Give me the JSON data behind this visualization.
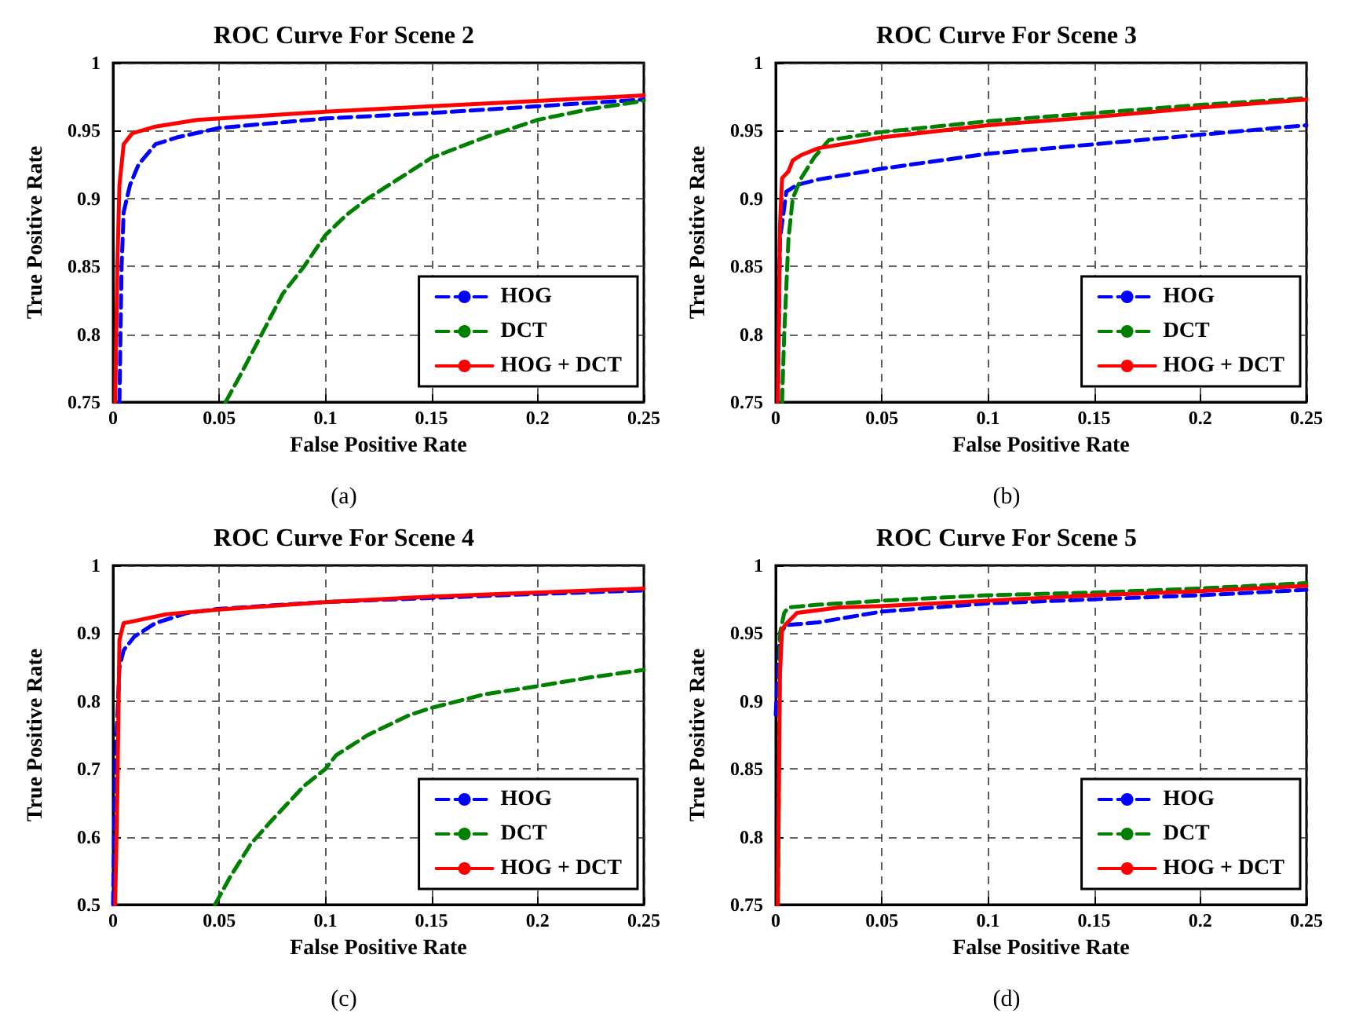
{
  "chart_data": [
    {
      "type": "line",
      "title": "ROC Curve For Scene 2",
      "xlabel": "False Positive Rate",
      "ylabel": "True Positive Rate",
      "annotations": [
        "(a)"
      ],
      "xlim": [
        0,
        0.25
      ],
      "ylim": [
        0.75,
        1
      ],
      "xticks": [
        0,
        0.05,
        0.1,
        0.15,
        0.2,
        0.25
      ],
      "yticks": [
        0.75,
        0.8,
        0.85,
        0.9,
        0.95,
        1
      ],
      "grid": true,
      "legend": "bottom right",
      "series": [
        {
          "name": "HOG",
          "color": "#0000ff",
          "line_style": "dashed",
          "x": [
            0.003,
            0.004,
            0.005,
            0.008,
            0.012,
            0.02,
            0.03,
            0.05,
            0.1,
            0.15,
            0.2,
            0.25
          ],
          "values": [
            0.75,
            0.85,
            0.89,
            0.91,
            0.925,
            0.94,
            0.945,
            0.952,
            0.959,
            0.963,
            0.968,
            0.973
          ]
        },
        {
          "name": "DCT",
          "color": "#008000",
          "line_style": "dashed",
          "x": [
            0.053,
            0.06,
            0.07,
            0.08,
            0.09,
            0.1,
            0.11,
            0.12,
            0.135,
            0.15,
            0.175,
            0.2,
            0.225,
            0.25
          ],
          "values": [
            0.75,
            0.77,
            0.8,
            0.83,
            0.85,
            0.873,
            0.888,
            0.9,
            0.915,
            0.93,
            0.945,
            0.958,
            0.966,
            0.972
          ]
        },
        {
          "name": "HOG + DCT",
          "color": "#ff0000",
          "line_style": "solid",
          "x": [
            0.001,
            0.002,
            0.003,
            0.005,
            0.009,
            0.02,
            0.04,
            0.1,
            0.15,
            0.2,
            0.25
          ],
          "values": [
            0.75,
            0.85,
            0.91,
            0.94,
            0.948,
            0.953,
            0.958,
            0.964,
            0.968,
            0.972,
            0.976
          ]
        }
      ]
    },
    {
      "type": "line",
      "title": "ROC Curve For Scene 3",
      "xlabel": "False Positive Rate",
      "ylabel": "True Positive Rate",
      "annotations": [
        "(b)"
      ],
      "xlim": [
        0,
        0.25
      ],
      "ylim": [
        0.75,
        1
      ],
      "xticks": [
        0,
        0.05,
        0.1,
        0.15,
        0.2,
        0.25
      ],
      "yticks": [
        0.75,
        0.8,
        0.85,
        0.9,
        0.95,
        1
      ],
      "grid": true,
      "legend": "bottom right",
      "series": [
        {
          "name": "HOG",
          "color": "#0000ff",
          "line_style": "dashed",
          "x": [
            0.001,
            0.002,
            0.005,
            0.01,
            0.02,
            0.05,
            0.1,
            0.15,
            0.2,
            0.25
          ],
          "values": [
            0.75,
            0.87,
            0.905,
            0.91,
            0.914,
            0.922,
            0.933,
            0.94,
            0.947,
            0.954
          ]
        },
        {
          "name": "DCT",
          "color": "#008000",
          "line_style": "dashed",
          "x": [
            0.003,
            0.004,
            0.006,
            0.008,
            0.012,
            0.018,
            0.025,
            0.05,
            0.1,
            0.15,
            0.2,
            0.25
          ],
          "values": [
            0.75,
            0.8,
            0.87,
            0.9,
            0.915,
            0.93,
            0.943,
            0.949,
            0.957,
            0.963,
            0.969,
            0.974
          ]
        },
        {
          "name": "HOG + DCT",
          "color": "#ff0000",
          "line_style": "solid",
          "x": [
            0.001,
            0.002,
            0.003,
            0.006,
            0.008,
            0.012,
            0.02,
            0.05,
            0.1,
            0.15,
            0.2,
            0.25
          ],
          "values": [
            0.75,
            0.88,
            0.915,
            0.92,
            0.928,
            0.932,
            0.937,
            0.945,
            0.954,
            0.96,
            0.967,
            0.973
          ]
        }
      ]
    },
    {
      "type": "line",
      "title": "ROC Curve For Scene 4",
      "xlabel": "False Positive Rate",
      "ylabel": "True Positive Rate",
      "annotations": [
        "(c)"
      ],
      "xlim": [
        0,
        0.25
      ],
      "ylim": [
        0.5,
        1
      ],
      "xticks": [
        0,
        0.05,
        0.1,
        0.15,
        0.2,
        0.25
      ],
      "yticks": [
        0.5,
        0.6,
        0.7,
        0.8,
        0.9,
        1
      ],
      "grid": true,
      "legend": "bottom right",
      "series": [
        {
          "name": "HOG",
          "color": "#0000ff",
          "line_style": "dashed",
          "x": [
            0,
            0.001,
            0.003,
            0.005,
            0.01,
            0.02,
            0.035,
            0.05,
            0.1,
            0.2,
            0.25
          ],
          "values": [
            0.5,
            0.7,
            0.85,
            0.875,
            0.895,
            0.915,
            0.93,
            0.936,
            0.946,
            0.958,
            0.963
          ]
        },
        {
          "name": "DCT",
          "color": "#008000",
          "line_style": "dashed",
          "x": [
            0.048,
            0.055,
            0.065,
            0.075,
            0.09,
            0.1,
            0.105,
            0.12,
            0.14,
            0.15,
            0.175,
            0.2,
            0.225,
            0.25
          ],
          "values": [
            0.5,
            0.54,
            0.59,
            0.625,
            0.675,
            0.7,
            0.72,
            0.75,
            0.78,
            0.79,
            0.81,
            0.822,
            0.835,
            0.846
          ]
        },
        {
          "name": "HOG + DCT",
          "color": "#ff0000",
          "line_style": "solid",
          "x": [
            0.001,
            0.002,
            0.003,
            0.005,
            0.01,
            0.025,
            0.05,
            0.1,
            0.15,
            0.2,
            0.25
          ],
          "values": [
            0.5,
            0.66,
            0.89,
            0.915,
            0.918,
            0.928,
            0.935,
            0.946,
            0.954,
            0.96,
            0.966
          ]
        }
      ]
    },
    {
      "type": "line",
      "title": "ROC Curve For Scene 5",
      "xlabel": "False Positive Rate",
      "ylabel": "True Positive Rate",
      "annotations": [
        "(d)"
      ],
      "xlim": [
        0,
        0.25
      ],
      "ylim": [
        0.75,
        1
      ],
      "xticks": [
        0,
        0.05,
        0.1,
        0.15,
        0.2,
        0.25
      ],
      "yticks": [
        0.75,
        0.8,
        0.85,
        0.9,
        0.95,
        1
      ],
      "grid": true,
      "legend": "bottom right",
      "series": [
        {
          "name": "HOG",
          "color": "#0000ff",
          "line_style": "dashed",
          "x": [
            0,
            0.002,
            0.005,
            0.02,
            0.05,
            0.1,
            0.15,
            0.2,
            0.25
          ],
          "values": [
            0.89,
            0.95,
            0.956,
            0.958,
            0.966,
            0.972,
            0.975,
            0.978,
            0.982
          ]
        },
        {
          "name": "DCT",
          "color": "#008000",
          "line_style": "dashed",
          "x": [
            0.001,
            0.002,
            0.004,
            0.006,
            0.02,
            0.05,
            0.1,
            0.15,
            0.2,
            0.25
          ],
          "values": [
            0.75,
            0.95,
            0.965,
            0.969,
            0.971,
            0.974,
            0.978,
            0.98,
            0.983,
            0.987
          ]
        },
        {
          "name": "HOG + DCT",
          "color": "#ff0000",
          "line_style": "solid",
          "x": [
            0.001,
            0.002,
            0.003,
            0.005,
            0.01,
            0.03,
            0.05,
            0.1,
            0.15,
            0.2,
            0.25
          ],
          "values": [
            0.75,
            0.92,
            0.953,
            0.957,
            0.965,
            0.969,
            0.97,
            0.974,
            0.978,
            0.981,
            0.985
          ]
        }
      ]
    }
  ]
}
